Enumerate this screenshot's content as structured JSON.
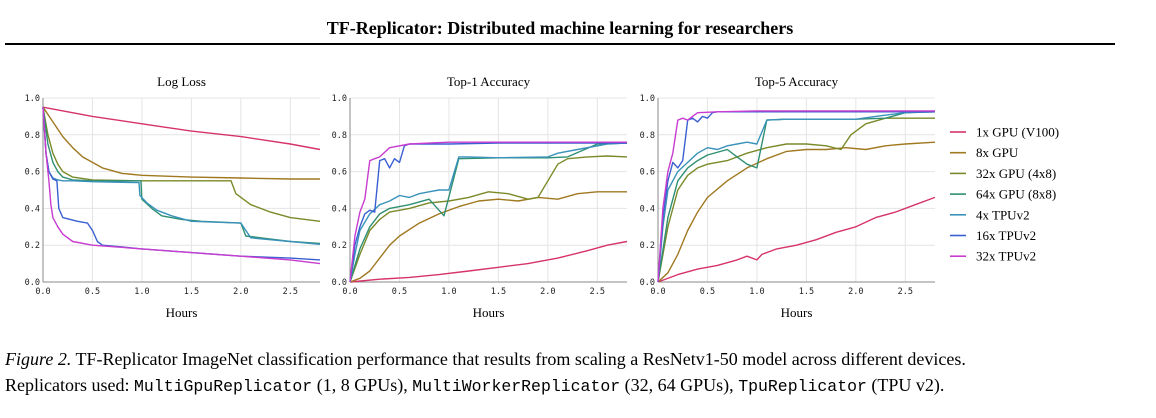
{
  "header": {
    "title": "TF-Replicator: Distributed machine learning for researchers"
  },
  "caption": {
    "fig_label": "Figure 2.",
    "text1": " TF-Replicator ImageNet classification performance that results from scaling a ResNetv1-50 model across different devices.",
    "text2": "Replicators used: ",
    "code1": "MultiGpuReplicator",
    "text3": " (1, 8 GPUs), ",
    "code2": "MultiWorkerReplicator",
    "text4": " (32, 64 GPUs), ",
    "code3": "TpuReplicator",
    "text5": " (TPU v2)."
  },
  "legend": [
    {
      "name": "1x GPU (V100)",
      "color": "#d6336c"
    },
    {
      "name": "8x GPU",
      "color": "#a07820"
    },
    {
      "name": "32x GPU (4x8)",
      "color": "#7a8a28"
    },
    {
      "name": "64x GPU (8x8)",
      "color": "#2f8f72"
    },
    {
      "name": "4x TPUv2",
      "color": "#3a92bb"
    },
    {
      "name": "16x TPUv2",
      "color": "#3a5fd0"
    },
    {
      "name": "32x TPUv2",
      "color": "#c83cd0"
    }
  ],
  "chart_data": [
    {
      "type": "line",
      "title": "Log Loss",
      "xlabel": "Hours",
      "ylabel": "",
      "xlim": [
        0,
        2.8
      ],
      "ylim": [
        0,
        1.0
      ],
      "xticks": [
        "0.0",
        "0.5",
        "1.0",
        "1.5",
        "2.0",
        "2.5"
      ],
      "yticks": [
        "0.0",
        "0.2",
        "0.4",
        "0.6",
        "0.8",
        "1.0"
      ],
      "grid": true,
      "series": [
        {
          "name": "1x GPU (V100)",
          "x": [
            0,
            0.5,
            1.0,
            1.5,
            2.0,
            2.5,
            2.8
          ],
          "y": [
            0.95,
            0.9,
            0.86,
            0.82,
            0.79,
            0.75,
            0.72
          ]
        },
        {
          "name": "8x GPU",
          "x": [
            0,
            0.1,
            0.2,
            0.3,
            0.4,
            0.6,
            0.8,
            1.0,
            1.5,
            2.0,
            2.5,
            2.8
          ],
          "y": [
            0.95,
            0.87,
            0.79,
            0.73,
            0.68,
            0.62,
            0.59,
            0.58,
            0.57,
            0.565,
            0.56,
            0.56
          ]
        },
        {
          "name": "32x GPU (4x8)",
          "x": [
            0,
            0.05,
            0.1,
            0.15,
            0.2,
            0.3,
            0.5,
            1.0,
            1.5,
            1.9,
            1.95,
            2.1,
            2.3,
            2.5,
            2.8
          ],
          "y": [
            0.95,
            0.8,
            0.7,
            0.64,
            0.6,
            0.57,
            0.555,
            0.55,
            0.55,
            0.55,
            0.48,
            0.42,
            0.38,
            0.35,
            0.33
          ]
        },
        {
          "name": "64x GPU (8x8)",
          "x": [
            0,
            0.05,
            0.1,
            0.15,
            0.2,
            0.3,
            0.5,
            0.99,
            1.0,
            1.1,
            1.2,
            1.4,
            1.6,
            2.0,
            2.05,
            2.2,
            2.5,
            2.8
          ],
          "y": [
            0.95,
            0.75,
            0.65,
            0.6,
            0.57,
            0.555,
            0.55,
            0.55,
            0.45,
            0.4,
            0.36,
            0.34,
            0.33,
            0.32,
            0.25,
            0.24,
            0.22,
            0.21
          ]
        },
        {
          "name": "4x TPUv2",
          "x": [
            0,
            0.03,
            0.06,
            0.1,
            0.15,
            0.2,
            0.3,
            0.5,
            0.97,
            0.98,
            1.05,
            1.15,
            1.3,
            1.5,
            2.0,
            2.1,
            2.2,
            2.5,
            2.8
          ],
          "y": [
            0.95,
            0.7,
            0.6,
            0.565,
            0.555,
            0.55,
            0.55,
            0.545,
            0.54,
            0.47,
            0.43,
            0.39,
            0.36,
            0.33,
            0.32,
            0.24,
            0.235,
            0.22,
            0.205
          ]
        },
        {
          "name": "16x TPUv2",
          "x": [
            0,
            0.03,
            0.06,
            0.1,
            0.14,
            0.16,
            0.2,
            0.35,
            0.45,
            0.5,
            0.55,
            0.6,
            0.8,
            1.0,
            1.5,
            2.0,
            2.5,
            2.8
          ],
          "y": [
            0.95,
            0.7,
            0.6,
            0.56,
            0.55,
            0.4,
            0.35,
            0.33,
            0.32,
            0.28,
            0.22,
            0.2,
            0.19,
            0.18,
            0.16,
            0.14,
            0.13,
            0.12
          ]
        },
        {
          "name": "32x TPUv2",
          "x": [
            0,
            0.03,
            0.06,
            0.08,
            0.1,
            0.15,
            0.2,
            0.3,
            0.5,
            1.0,
            1.5,
            2.0,
            2.5,
            2.8
          ],
          "y": [
            0.95,
            0.7,
            0.55,
            0.42,
            0.35,
            0.3,
            0.26,
            0.22,
            0.2,
            0.18,
            0.16,
            0.14,
            0.12,
            0.1
          ]
        }
      ]
    },
    {
      "type": "line",
      "title": "Top-1 Accuracy",
      "xlabel": "Hours",
      "ylabel": "",
      "xlim": [
        0,
        2.8
      ],
      "ylim": [
        0,
        1.0
      ],
      "xticks": [
        "0.0",
        "0.5",
        "1.0",
        "1.5",
        "2.0",
        "2.5"
      ],
      "yticks": [
        "0.0",
        "0.2",
        "0.4",
        "0.6",
        "0.8",
        "1.0"
      ],
      "grid": true,
      "series": [
        {
          "name": "1x GPU (V100)",
          "x": [
            0,
            0.3,
            0.6,
            0.9,
            1.2,
            1.5,
            1.8,
            2.1,
            2.4,
            2.6,
            2.8
          ],
          "y": [
            0.0,
            0.015,
            0.025,
            0.04,
            0.06,
            0.08,
            0.1,
            0.13,
            0.17,
            0.2,
            0.22
          ]
        },
        {
          "name": "8x GPU",
          "x": [
            0,
            0.1,
            0.2,
            0.3,
            0.4,
            0.5,
            0.7,
            0.9,
            1.1,
            1.3,
            1.5,
            1.7,
            1.9,
            2.1,
            2.3,
            2.5,
            2.8
          ],
          "y": [
            0.0,
            0.02,
            0.06,
            0.13,
            0.2,
            0.25,
            0.32,
            0.37,
            0.41,
            0.44,
            0.45,
            0.44,
            0.46,
            0.45,
            0.48,
            0.49,
            0.49
          ]
        },
        {
          "name": "32x GPU (4x8)",
          "x": [
            0,
            0.1,
            0.2,
            0.3,
            0.4,
            0.6,
            0.8,
            1.0,
            1.2,
            1.4,
            1.6,
            1.8,
            1.9,
            2.0,
            2.1,
            2.2,
            2.4,
            2.6,
            2.8
          ],
          "y": [
            0.0,
            0.15,
            0.28,
            0.34,
            0.38,
            0.4,
            0.43,
            0.44,
            0.46,
            0.49,
            0.48,
            0.45,
            0.46,
            0.55,
            0.64,
            0.67,
            0.68,
            0.685,
            0.68
          ]
        },
        {
          "name": "64x GPU (8x8)",
          "x": [
            0,
            0.1,
            0.2,
            0.3,
            0.4,
            0.6,
            0.8,
            0.95,
            1.1,
            1.5,
            2.0,
            2.2,
            2.5,
            2.8
          ],
          "y": [
            0.0,
            0.18,
            0.3,
            0.37,
            0.4,
            0.42,
            0.45,
            0.36,
            0.67,
            0.675,
            0.675,
            0.68,
            0.75,
            0.755
          ]
        },
        {
          "name": "4x TPUv2",
          "x": [
            0,
            0.05,
            0.1,
            0.2,
            0.3,
            0.4,
            0.5,
            0.6,
            0.7,
            0.8,
            0.9,
            1.0,
            1.1,
            1.2,
            1.5,
            2.0,
            2.1,
            2.3,
            2.6,
            2.8
          ],
          "y": [
            0.0,
            0.15,
            0.28,
            0.37,
            0.42,
            0.44,
            0.47,
            0.46,
            0.48,
            0.49,
            0.5,
            0.5,
            0.68,
            0.68,
            0.675,
            0.68,
            0.7,
            0.72,
            0.75,
            0.755
          ]
        },
        {
          "name": "16x TPUv2",
          "x": [
            0,
            0.05,
            0.1,
            0.15,
            0.2,
            0.25,
            0.3,
            0.35,
            0.4,
            0.45,
            0.5,
            0.55,
            0.6,
            0.8,
            1.0,
            1.5,
            2.0,
            2.5,
            2.8
          ],
          "y": [
            0.0,
            0.2,
            0.3,
            0.37,
            0.39,
            0.38,
            0.66,
            0.67,
            0.62,
            0.67,
            0.65,
            0.74,
            0.75,
            0.75,
            0.75,
            0.755,
            0.755,
            0.755,
            0.755
          ]
        },
        {
          "name": "32x TPUv2",
          "x": [
            0,
            0.05,
            0.1,
            0.15,
            0.2,
            0.25,
            0.3,
            0.4,
            0.6,
            0.8,
            1.0,
            1.5,
            2.0,
            2.5,
            2.8
          ],
          "y": [
            0.0,
            0.25,
            0.38,
            0.45,
            0.66,
            0.67,
            0.68,
            0.73,
            0.75,
            0.755,
            0.76,
            0.76,
            0.76,
            0.76,
            0.76
          ]
        }
      ]
    },
    {
      "type": "line",
      "title": "Top-5 Accuracy",
      "xlabel": "Hours",
      "ylabel": "",
      "xlim": [
        0,
        2.8
      ],
      "ylim": [
        0,
        1.0
      ],
      "xticks": [
        "0.0",
        "0.5",
        "1.0",
        "1.5",
        "2.0",
        "2.5"
      ],
      "yticks": [
        "0.0",
        "0.2",
        "0.4",
        "0.6",
        "0.8",
        "1.0"
      ],
      "grid": true,
      "series": [
        {
          "name": "1x GPU (V100)",
          "x": [
            0,
            0.2,
            0.4,
            0.6,
            0.8,
            0.9,
            1.0,
            1.05,
            1.2,
            1.4,
            1.6,
            1.8,
            2.0,
            2.2,
            2.4,
            2.6,
            2.8
          ],
          "y": [
            0.0,
            0.04,
            0.07,
            0.09,
            0.12,
            0.14,
            0.12,
            0.15,
            0.18,
            0.2,
            0.23,
            0.27,
            0.3,
            0.35,
            0.38,
            0.42,
            0.46
          ]
        },
        {
          "name": "8x GPU",
          "x": [
            0,
            0.1,
            0.2,
            0.3,
            0.4,
            0.5,
            0.7,
            0.9,
            1.1,
            1.3,
            1.5,
            1.7,
            1.9,
            2.1,
            2.3,
            2.5,
            2.8
          ],
          "y": [
            0.0,
            0.05,
            0.15,
            0.28,
            0.38,
            0.46,
            0.55,
            0.62,
            0.67,
            0.71,
            0.72,
            0.72,
            0.73,
            0.72,
            0.74,
            0.75,
            0.76
          ]
        },
        {
          "name": "32x GPU (4x8)",
          "x": [
            0,
            0.1,
            0.2,
            0.3,
            0.4,
            0.5,
            0.7,
            0.9,
            1.1,
            1.3,
            1.5,
            1.7,
            1.85,
            1.95,
            2.1,
            2.3,
            2.5,
            2.8
          ],
          "y": [
            0.0,
            0.3,
            0.5,
            0.58,
            0.62,
            0.64,
            0.66,
            0.7,
            0.73,
            0.75,
            0.75,
            0.74,
            0.72,
            0.8,
            0.86,
            0.89,
            0.89,
            0.89
          ]
        },
        {
          "name": "64x GPU (8x8)",
          "x": [
            0,
            0.1,
            0.2,
            0.3,
            0.4,
            0.5,
            0.7,
            0.8,
            0.9,
            1.0,
            1.1,
            1.3,
            1.5,
            2.0,
            2.3,
            2.5,
            2.8
          ],
          "y": [
            0.0,
            0.35,
            0.55,
            0.62,
            0.66,
            0.69,
            0.72,
            0.68,
            0.64,
            0.62,
            0.88,
            0.885,
            0.885,
            0.885,
            0.89,
            0.92,
            0.925
          ]
        },
        {
          "name": "4x TPUv2",
          "x": [
            0,
            0.05,
            0.1,
            0.2,
            0.3,
            0.4,
            0.5,
            0.6,
            0.7,
            0.8,
            0.9,
            1.0,
            1.1,
            1.3,
            1.5,
            2.0,
            2.2,
            2.5,
            2.8
          ],
          "y": [
            0.0,
            0.3,
            0.5,
            0.6,
            0.65,
            0.7,
            0.73,
            0.72,
            0.74,
            0.75,
            0.76,
            0.75,
            0.88,
            0.885,
            0.885,
            0.885,
            0.9,
            0.92,
            0.925
          ]
        },
        {
          "name": "16x TPUv2",
          "x": [
            0,
            0.05,
            0.1,
            0.15,
            0.2,
            0.25,
            0.3,
            0.35,
            0.4,
            0.45,
            0.5,
            0.55,
            0.6,
            1.0,
            1.5,
            2.0,
            2.5,
            2.8
          ],
          "y": [
            0.0,
            0.35,
            0.55,
            0.65,
            0.62,
            0.66,
            0.88,
            0.89,
            0.87,
            0.9,
            0.89,
            0.92,
            0.925,
            0.925,
            0.925,
            0.925,
            0.925,
            0.925
          ]
        },
        {
          "name": "32x TPUv2",
          "x": [
            0,
            0.05,
            0.1,
            0.15,
            0.2,
            0.25,
            0.3,
            0.4,
            0.6,
            1.0,
            1.5,
            2.0,
            2.5,
            2.8
          ],
          "y": [
            0.0,
            0.4,
            0.6,
            0.7,
            0.88,
            0.89,
            0.88,
            0.92,
            0.925,
            0.93,
            0.93,
            0.93,
            0.93,
            0.93
          ]
        }
      ]
    }
  ]
}
